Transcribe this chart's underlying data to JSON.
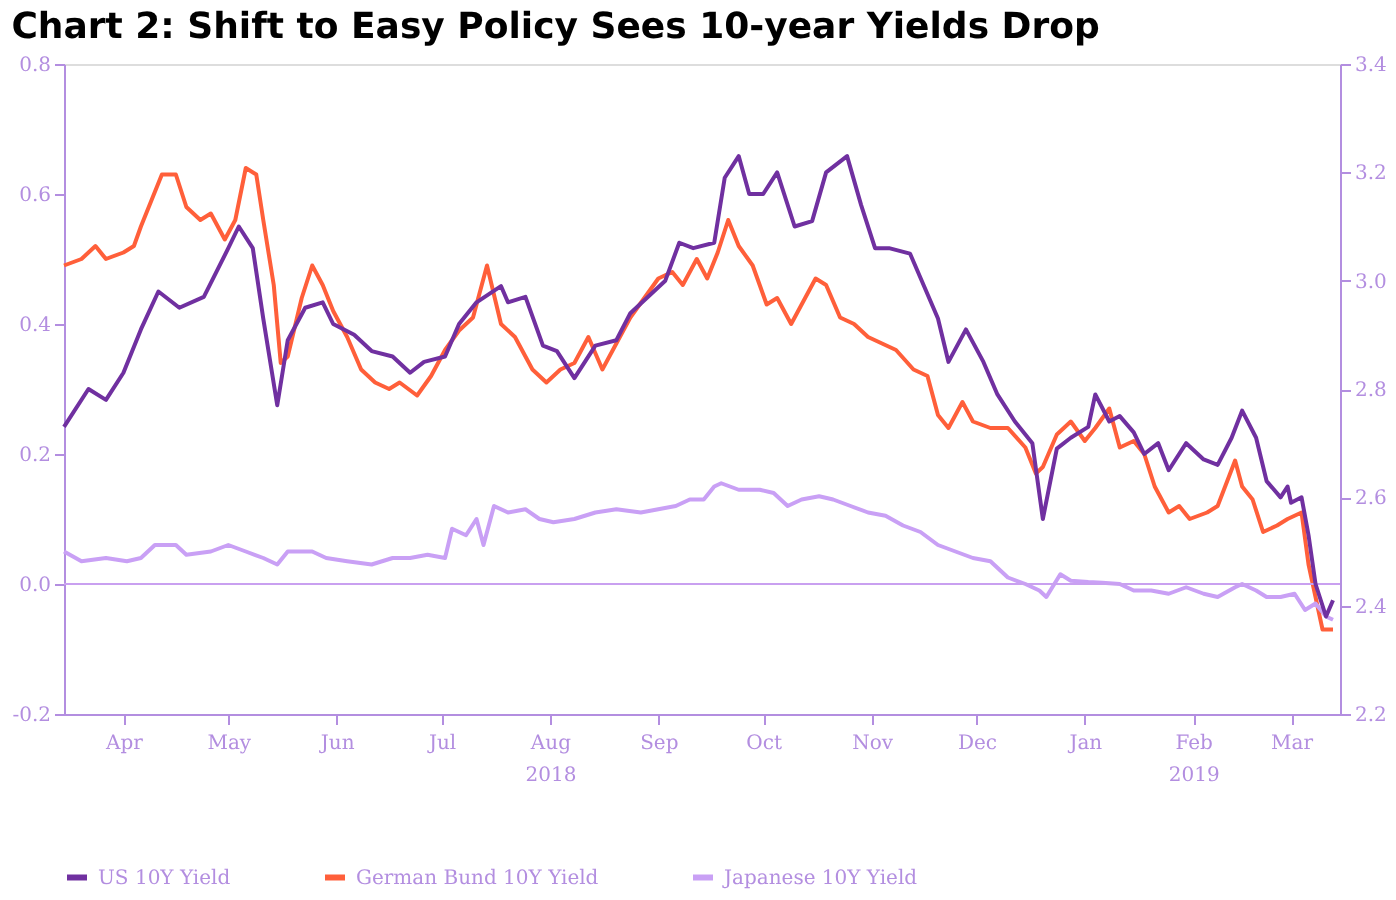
{
  "chart_data": {
    "type": "line",
    "title": "Chart 2: Shift to Easy Policy Sees 10-year Yields Drop",
    "xlim": [
      "2018-03-29",
      "2019-03-29"
    ],
    "xticks": [
      {
        "value": "2018-04-15",
        "label": "Apr"
      },
      {
        "value": "2018-05-15",
        "label": "May"
      },
      {
        "value": "2018-06-15",
        "label": "Jun"
      },
      {
        "value": "2018-07-15",
        "label": "Jul"
      },
      {
        "value": "2018-08-15",
        "label": "Aug\n2018"
      },
      {
        "value": "2018-09-15",
        "label": "Sep"
      },
      {
        "value": "2018-10-15",
        "label": "Oct"
      },
      {
        "value": "2018-11-15",
        "label": "Nov"
      },
      {
        "value": "2018-12-15",
        "label": "Dec"
      },
      {
        "value": "2019-01-15",
        "label": "Jan"
      },
      {
        "value": "2019-02-15",
        "label": "Feb\n2019"
      },
      {
        "value": "2019-03-15",
        "label": "Mar"
      }
    ],
    "ylim": [
      -0.2,
      0.8
    ],
    "yticks": [
      {
        "value": -0.2,
        "label": "-0.2"
      },
      {
        "value": 0,
        "label": "0.0"
      },
      {
        "value": 0.2,
        "label": "0.2"
      },
      {
        "value": 0.4,
        "label": "0.4"
      },
      {
        "value": 0.6,
        "label": "0.6"
      },
      {
        "value": 0.8,
        "label": "0.8"
      }
    ],
    "y2lim": [
      2.2,
      3.4
    ],
    "y2ticks": [
      {
        "value": 2.2,
        "label": "2.2"
      },
      {
        "value": 2.4,
        "label": "2.4"
      },
      {
        "value": 2.6,
        "label": "2.6"
      },
      {
        "value": 2.8,
        "label": "2.8"
      },
      {
        "value": 3.0,
        "label": "3.0"
      },
      {
        "value": 3.2,
        "label": "3.2"
      },
      {
        "value": 3.4,
        "label": "3.4"
      }
    ],
    "grid": false,
    "legend": "bottom",
    "marker": "none",
    "line_style": "solid",
    "ref_lines": [
      {
        "axis": "y",
        "value": 0,
        "color": "#c9a0f0"
      }
    ],
    "series": [
      {
        "name": "US 10Y Yield",
        "color": "#7030a0",
        "axis": "y2",
        "x": [
          "2018-03-29",
          "2018-04-05",
          "2018-04-10",
          "2018-04-15",
          "2018-04-20",
          "2018-04-25",
          "2018-05-01",
          "2018-05-08",
          "2018-05-15",
          "2018-05-18",
          "2018-05-22",
          "2018-05-25",
          "2018-05-29",
          "2018-06-01",
          "2018-06-06",
          "2018-06-11",
          "2018-06-14",
          "2018-06-20",
          "2018-06-25",
          "2018-07-01",
          "2018-07-06",
          "2018-07-10",
          "2018-07-16",
          "2018-07-20",
          "2018-07-25",
          "2018-08-01",
          "2018-08-03",
          "2018-08-08",
          "2018-08-13",
          "2018-08-17",
          "2018-08-22",
          "2018-08-28",
          "2018-09-03",
          "2018-09-07",
          "2018-09-12",
          "2018-09-17",
          "2018-09-21",
          "2018-09-25",
          "2018-10-01",
          "2018-10-04",
          "2018-10-08",
          "2018-10-11",
          "2018-10-15",
          "2018-10-19",
          "2018-10-24",
          "2018-10-29",
          "2018-11-02",
          "2018-11-08",
          "2018-11-12",
          "2018-11-16",
          "2018-11-20",
          "2018-11-26",
          "2018-11-30",
          "2018-12-04",
          "2018-12-07",
          "2018-12-12",
          "2018-12-17",
          "2018-12-21",
          "2018-12-26",
          "2018-12-31",
          "2019-01-03",
          "2019-01-07",
          "2019-01-11",
          "2019-01-16",
          "2019-01-18",
          "2019-01-22",
          "2019-01-25",
          "2019-01-29",
          "2019-02-01",
          "2019-02-05",
          "2019-02-08",
          "2019-02-13",
          "2019-02-18",
          "2019-02-22",
          "2019-02-26",
          "2019-03-01",
          "2019-03-05",
          "2019-03-08",
          "2019-03-12",
          "2019-03-14",
          "2019-03-15",
          "2019-03-18",
          "2019-03-20",
          "2019-03-22",
          "2019-03-25",
          "2019-03-27"
        ],
        "values": [
          2.73,
          2.8,
          2.78,
          2.83,
          2.91,
          2.98,
          2.95,
          2.97,
          3.06,
          3.1,
          3.06,
          2.93,
          2.77,
          2.89,
          2.95,
          2.96,
          2.92,
          2.9,
          2.87,
          2.86,
          2.83,
          2.85,
          2.86,
          2.92,
          2.96,
          2.99,
          2.96,
          2.97,
          2.88,
          2.87,
          2.82,
          2.88,
          2.89,
          2.94,
          2.97,
          3.0,
          3.07,
          3.06,
          3.07,
          3.19,
          3.23,
          3.16,
          3.16,
          3.2,
          3.1,
          3.11,
          3.2,
          3.23,
          3.14,
          3.06,
          3.06,
          3.05,
          2.99,
          2.93,
          2.85,
          2.91,
          2.85,
          2.79,
          2.74,
          2.7,
          2.56,
          2.69,
          2.71,
          2.73,
          2.79,
          2.74,
          2.75,
          2.72,
          2.68,
          2.7,
          2.65,
          2.7,
          2.67,
          2.66,
          2.71,
          2.76,
          2.71,
          2.63,
          2.6,
          2.62,
          2.59,
          2.6,
          2.53,
          2.44,
          2.38,
          2.41
        ]
      },
      {
        "name": "German Bund 10Y Yield",
        "color": "#ff5f3a",
        "x": [
          "2018-03-29",
          "2018-04-03",
          "2018-04-07",
          "2018-04-10",
          "2018-04-15",
          "2018-04-18",
          "2018-04-20",
          "2018-04-23",
          "2018-04-26",
          "2018-04-30",
          "2018-05-03",
          "2018-05-07",
          "2018-05-10",
          "2018-05-14",
          "2018-05-17",
          "2018-05-20",
          "2018-05-23",
          "2018-05-25",
          "2018-05-28",
          "2018-05-30",
          "2018-06-01",
          "2018-06-05",
          "2018-06-08",
          "2018-06-11",
          "2018-06-14",
          "2018-06-18",
          "2018-06-22",
          "2018-06-26",
          "2018-06-30",
          "2018-07-03",
          "2018-07-08",
          "2018-07-12",
          "2018-07-16",
          "2018-07-20",
          "2018-07-24",
          "2018-07-28",
          "2018-08-01",
          "2018-08-05",
          "2018-08-10",
          "2018-08-14",
          "2018-08-18",
          "2018-08-22",
          "2018-08-26",
          "2018-08-30",
          "2018-09-03",
          "2018-09-07",
          "2018-09-11",
          "2018-09-15",
          "2018-09-19",
          "2018-09-22",
          "2018-09-26",
          "2018-09-29",
          "2018-10-02",
          "2018-10-05",
          "2018-10-08",
          "2018-10-12",
          "2018-10-16",
          "2018-10-19",
          "2018-10-23",
          "2018-10-26",
          "2018-10-30",
          "2018-11-02",
          "2018-11-06",
          "2018-11-10",
          "2018-11-14",
          "2018-11-18",
          "2018-11-22",
          "2018-11-27",
          "2018-12-01",
          "2018-12-04",
          "2018-12-07",
          "2018-12-11",
          "2018-12-14",
          "2018-12-19",
          "2018-12-24",
          "2018-12-29",
          "2019-01-01",
          "2019-01-03",
          "2019-01-07",
          "2019-01-11",
          "2019-01-15",
          "2019-01-18",
          "2019-01-22",
          "2019-01-25",
          "2019-01-29",
          "2019-02-01",
          "2019-02-04",
          "2019-02-08",
          "2019-02-11",
          "2019-02-14",
          "2019-02-19",
          "2019-02-22",
          "2019-02-27",
          "2019-03-01",
          "2019-03-04",
          "2019-03-07",
          "2019-03-11",
          "2019-03-14",
          "2019-03-18",
          "2019-03-20",
          "2019-03-22",
          "2019-03-24",
          "2019-03-27"
        ],
        "values": [
          0.49,
          0.5,
          0.52,
          0.5,
          0.51,
          0.52,
          0.55,
          0.59,
          0.63,
          0.63,
          0.58,
          0.56,
          0.57,
          0.53,
          0.56,
          0.64,
          0.63,
          0.56,
          0.46,
          0.34,
          0.35,
          0.44,
          0.49,
          0.46,
          0.42,
          0.38,
          0.33,
          0.31,
          0.3,
          0.31,
          0.29,
          0.32,
          0.36,
          0.39,
          0.41,
          0.49,
          0.4,
          0.38,
          0.33,
          0.31,
          0.33,
          0.34,
          0.38,
          0.33,
          0.37,
          0.41,
          0.44,
          0.47,
          0.48,
          0.46,
          0.5,
          0.47,
          0.51,
          0.56,
          0.52,
          0.49,
          0.43,
          0.44,
          0.4,
          0.43,
          0.47,
          0.46,
          0.41,
          0.4,
          0.38,
          0.37,
          0.36,
          0.33,
          0.32,
          0.26,
          0.24,
          0.28,
          0.25,
          0.24,
          0.24,
          0.21,
          0.17,
          0.18,
          0.23,
          0.25,
          0.22,
          0.24,
          0.27,
          0.21,
          0.22,
          0.2,
          0.15,
          0.11,
          0.12,
          0.1,
          0.11,
          0.12,
          0.19,
          0.15,
          0.13,
          0.08,
          0.09,
          0.1,
          0.11,
          0.03,
          -0.02,
          -0.07,
          -0.07
        ]
      },
      {
        "name": "Japanese 10Y Yield",
        "color": "#c9a0f5",
        "x": [
          "2018-03-29",
          "2018-04-03",
          "2018-04-10",
          "2018-04-16",
          "2018-04-20",
          "2018-04-24",
          "2018-04-30",
          "2018-05-03",
          "2018-05-10",
          "2018-05-15",
          "2018-05-20",
          "2018-05-25",
          "2018-05-29",
          "2018-06-01",
          "2018-06-08",
          "2018-06-12",
          "2018-06-18",
          "2018-06-25",
          "2018-07-01",
          "2018-07-06",
          "2018-07-11",
          "2018-07-16",
          "2018-07-18",
          "2018-07-22",
          "2018-07-25",
          "2018-07-27",
          "2018-07-30",
          "2018-08-03",
          "2018-08-08",
          "2018-08-12",
          "2018-08-16",
          "2018-08-22",
          "2018-08-28",
          "2018-09-03",
          "2018-09-10",
          "2018-09-15",
          "2018-09-20",
          "2018-09-24",
          "2018-09-28",
          "2018-10-01",
          "2018-10-03",
          "2018-10-08",
          "2018-10-14",
          "2018-10-18",
          "2018-10-22",
          "2018-10-26",
          "2018-10-31",
          "2018-11-04",
          "2018-11-09",
          "2018-11-14",
          "2018-11-19",
          "2018-11-24",
          "2018-11-29",
          "2018-12-04",
          "2018-12-09",
          "2018-12-14",
          "2018-12-19",
          "2018-12-24",
          "2018-12-29",
          "2019-01-02",
          "2019-01-04",
          "2019-01-08",
          "2019-01-11",
          "2019-01-16",
          "2019-01-20",
          "2019-01-25",
          "2019-01-29",
          "2019-02-03",
          "2019-02-08",
          "2019-02-13",
          "2019-02-18",
          "2019-02-22",
          "2019-02-27",
          "2019-03-01",
          "2019-03-05",
          "2019-03-08",
          "2019-03-12",
          "2019-03-16",
          "2019-03-19",
          "2019-03-22",
          "2019-03-25",
          "2019-03-27"
        ],
        "values": [
          0.05,
          0.035,
          0.04,
          0.035,
          0.04,
          0.06,
          0.06,
          0.045,
          0.05,
          0.06,
          0.05,
          0.04,
          0.03,
          0.05,
          0.05,
          0.04,
          0.035,
          0.03,
          0.04,
          0.04,
          0.045,
          0.04,
          0.085,
          0.075,
          0.1,
          0.06,
          0.12,
          0.11,
          0.115,
          0.1,
          0.095,
          0.1,
          0.11,
          0.115,
          0.11,
          0.115,
          0.12,
          0.13,
          0.13,
          0.15,
          0.155,
          0.145,
          0.145,
          0.14,
          0.12,
          0.13,
          0.135,
          0.13,
          0.12,
          0.11,
          0.105,
          0.09,
          0.08,
          0.06,
          0.05,
          0.04,
          0.035,
          0.01,
          0.0,
          -0.01,
          -0.02,
          0.015,
          0.005,
          0.003,
          0.002,
          0.0,
          -0.01,
          -0.01,
          -0.015,
          -0.005,
          -0.015,
          -0.02,
          -0.005,
          0.0,
          -0.01,
          -0.02,
          -0.02,
          -0.015,
          -0.04,
          -0.03,
          -0.05,
          -0.055
        ]
      }
    ]
  }
}
